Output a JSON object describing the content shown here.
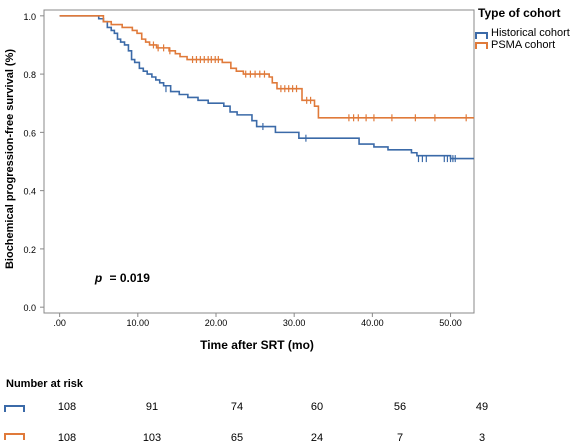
{
  "chart_data": {
    "type": "line",
    "subtype": "kaplan-meier step",
    "ylabel": "Biochemical progression-free survival (%)",
    "xlabel": "Time after SRT (mo)",
    "x_ticks": [
      ".00",
      "10.00",
      "20.00",
      "30.00",
      "40.00",
      "50.00"
    ],
    "y_ticks": [
      "0.0",
      "0.2",
      "0.4",
      "0.6",
      "0.8",
      "1.0"
    ],
    "xlim": [
      -2,
      53
    ],
    "ylim": [
      -0.02,
      1.02
    ],
    "grid": false,
    "annotation": {
      "p_label": "p",
      "p_value": "= 0.019",
      "x": 4.5,
      "y": 0.1
    },
    "legend": {
      "title": "Type of cohort",
      "position": "right"
    },
    "series": [
      {
        "name": "Historical cohort",
        "color": "#3b6aa8",
        "steps": [
          [
            0,
            1.0
          ],
          [
            5,
            0.99
          ],
          [
            5.6,
            0.98
          ],
          [
            6.1,
            0.96
          ],
          [
            6.6,
            0.95
          ],
          [
            7.0,
            0.94
          ],
          [
            7.4,
            0.92
          ],
          [
            7.8,
            0.91
          ],
          [
            8.3,
            0.9
          ],
          [
            8.8,
            0.88
          ],
          [
            9.2,
            0.85
          ],
          [
            9.6,
            0.84
          ],
          [
            10.2,
            0.82
          ],
          [
            10.7,
            0.81
          ],
          [
            11.2,
            0.8
          ],
          [
            11.8,
            0.79
          ],
          [
            12.3,
            0.78
          ],
          [
            12.8,
            0.77
          ],
          [
            13.3,
            0.76
          ],
          [
            14.2,
            0.74
          ],
          [
            15.3,
            0.73
          ],
          [
            16.4,
            0.72
          ],
          [
            17.7,
            0.71
          ],
          [
            19.0,
            0.7
          ],
          [
            21.0,
            0.69
          ],
          [
            21.8,
            0.67
          ],
          [
            22.7,
            0.66
          ],
          [
            24.6,
            0.64
          ],
          [
            25.2,
            0.62
          ],
          [
            27.6,
            0.6
          ],
          [
            30.6,
            0.58
          ],
          [
            38.3,
            0.56
          ],
          [
            40.2,
            0.55
          ],
          [
            42.0,
            0.54
          ],
          [
            45.0,
            0.53
          ],
          [
            45.7,
            0.52
          ],
          [
            50.0,
            0.51
          ],
          [
            53,
            0.51
          ]
        ],
        "censors": [
          [
            13.6,
            0.75
          ],
          [
            26.0,
            0.62
          ],
          [
            31.5,
            0.58
          ],
          [
            45.9,
            0.51
          ],
          [
            46.4,
            0.51
          ],
          [
            46.9,
            0.51
          ],
          [
            49.2,
            0.51
          ],
          [
            49.6,
            0.51
          ],
          [
            50.0,
            0.51
          ],
          [
            50.3,
            0.51
          ],
          [
            50.6,
            0.51
          ]
        ]
      },
      {
        "name": "PSMA cohort",
        "color": "#e07a3a",
        "steps": [
          [
            0,
            1.0
          ],
          [
            5.6,
            0.98
          ],
          [
            6.6,
            0.97
          ],
          [
            8.0,
            0.96
          ],
          [
            9.3,
            0.95
          ],
          [
            9.9,
            0.94
          ],
          [
            10.5,
            0.92
          ],
          [
            11.0,
            0.91
          ],
          [
            11.5,
            0.9
          ],
          [
            12.4,
            0.89
          ],
          [
            14.0,
            0.88
          ],
          [
            14.8,
            0.87
          ],
          [
            15.4,
            0.86
          ],
          [
            16.3,
            0.85
          ],
          [
            20.8,
            0.84
          ],
          [
            21.9,
            0.82
          ],
          [
            22.6,
            0.81
          ],
          [
            23.5,
            0.8
          ],
          [
            26.8,
            0.79
          ],
          [
            27.2,
            0.77
          ],
          [
            27.8,
            0.75
          ],
          [
            31.0,
            0.71
          ],
          [
            32.6,
            0.69
          ],
          [
            33.1,
            0.65
          ],
          [
            53,
            0.65
          ]
        ],
        "censors": [
          [
            12.0,
            0.9
          ],
          [
            12.6,
            0.89
          ],
          [
            13.3,
            0.89
          ],
          [
            14.1,
            0.88
          ],
          [
            17.0,
            0.85
          ],
          [
            17.5,
            0.85
          ],
          [
            18.0,
            0.85
          ],
          [
            18.5,
            0.85
          ],
          [
            19.0,
            0.85
          ],
          [
            19.4,
            0.85
          ],
          [
            19.9,
            0.85
          ],
          [
            20.3,
            0.85
          ],
          [
            23.8,
            0.8
          ],
          [
            24.4,
            0.8
          ],
          [
            25.0,
            0.8
          ],
          [
            25.6,
            0.8
          ],
          [
            26.2,
            0.8
          ],
          [
            28.3,
            0.75
          ],
          [
            28.8,
            0.75
          ],
          [
            29.3,
            0.75
          ],
          [
            29.8,
            0.75
          ],
          [
            30.3,
            0.75
          ],
          [
            31.6,
            0.71
          ],
          [
            32.1,
            0.71
          ],
          [
            37.0,
            0.65
          ],
          [
            37.6,
            0.65
          ],
          [
            38.2,
            0.65
          ],
          [
            39.2,
            0.65
          ],
          [
            40.2,
            0.65
          ],
          [
            42.5,
            0.65
          ],
          [
            45.5,
            0.65
          ],
          [
            48.0,
            0.65
          ],
          [
            52.0,
            0.65
          ]
        ]
      }
    ]
  },
  "risk_table": {
    "title": "Number at risk",
    "rows": [
      {
        "name": "Historical cohort",
        "color": "#3b6aa8",
        "values": [
          "108",
          "91",
          "74",
          "60",
          "56",
          "49"
        ]
      },
      {
        "name": "PSMA cohort",
        "color": "#e07a3a",
        "values": [
          "108",
          "103",
          "65",
          "24",
          "7",
          "3"
        ]
      }
    ]
  }
}
